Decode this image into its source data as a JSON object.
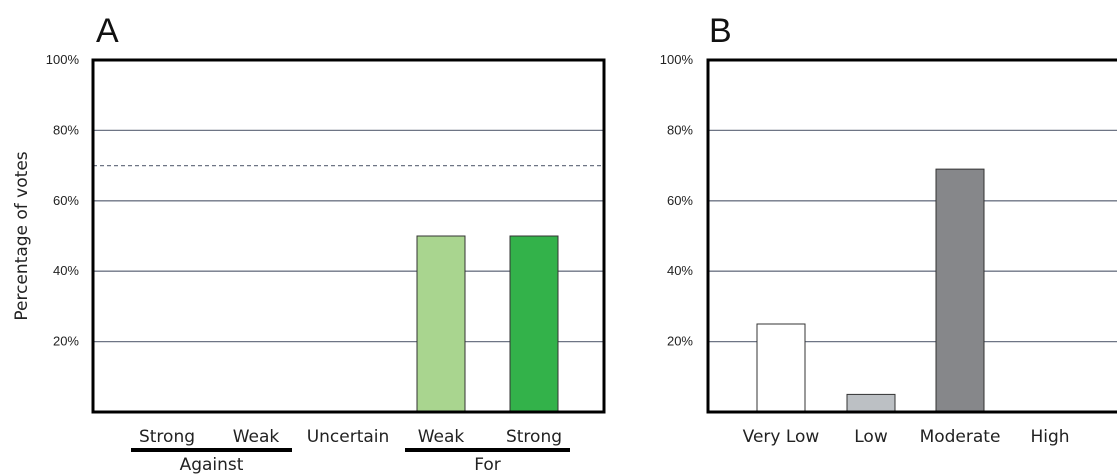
{
  "chart_data": [
    {
      "panel": "A",
      "type": "bar",
      "ylabel": "Percentage of votes",
      "ylim": [
        0,
        100
      ],
      "yticks": [
        "20%",
        "40%",
        "60%",
        "80%",
        "100%"
      ],
      "ytick_values": [
        20,
        40,
        60,
        80,
        100
      ],
      "grid": true,
      "reference_line": 70,
      "categories": [
        "Strong",
        "Weak",
        "Uncertain",
        "Weak",
        "Strong"
      ],
      "values": [
        0,
        0,
        0,
        50,
        50
      ],
      "colors": [
        "#ffffff",
        "#ffffff",
        "#ffffff",
        "#a9d58f",
        "#33b24a"
      ],
      "groups": [
        {
          "label": "Against",
          "members": [
            0,
            1
          ]
        },
        {
          "label": "For",
          "members": [
            3,
            4
          ]
        }
      ]
    },
    {
      "panel": "B",
      "type": "bar",
      "ylim": [
        0,
        100
      ],
      "yticks": [
        "20%",
        "40%",
        "60%",
        "80%",
        "100%"
      ],
      "ytick_values": [
        20,
        40,
        60,
        80,
        100
      ],
      "grid": true,
      "categories": [
        "Very Low",
        "Low",
        "Moderate",
        "High"
      ],
      "values": [
        25,
        5,
        69,
        0
      ],
      "colors": [
        "#ffffff",
        "#bcc0c4",
        "#86878a",
        "#ffffff"
      ]
    }
  ]
}
